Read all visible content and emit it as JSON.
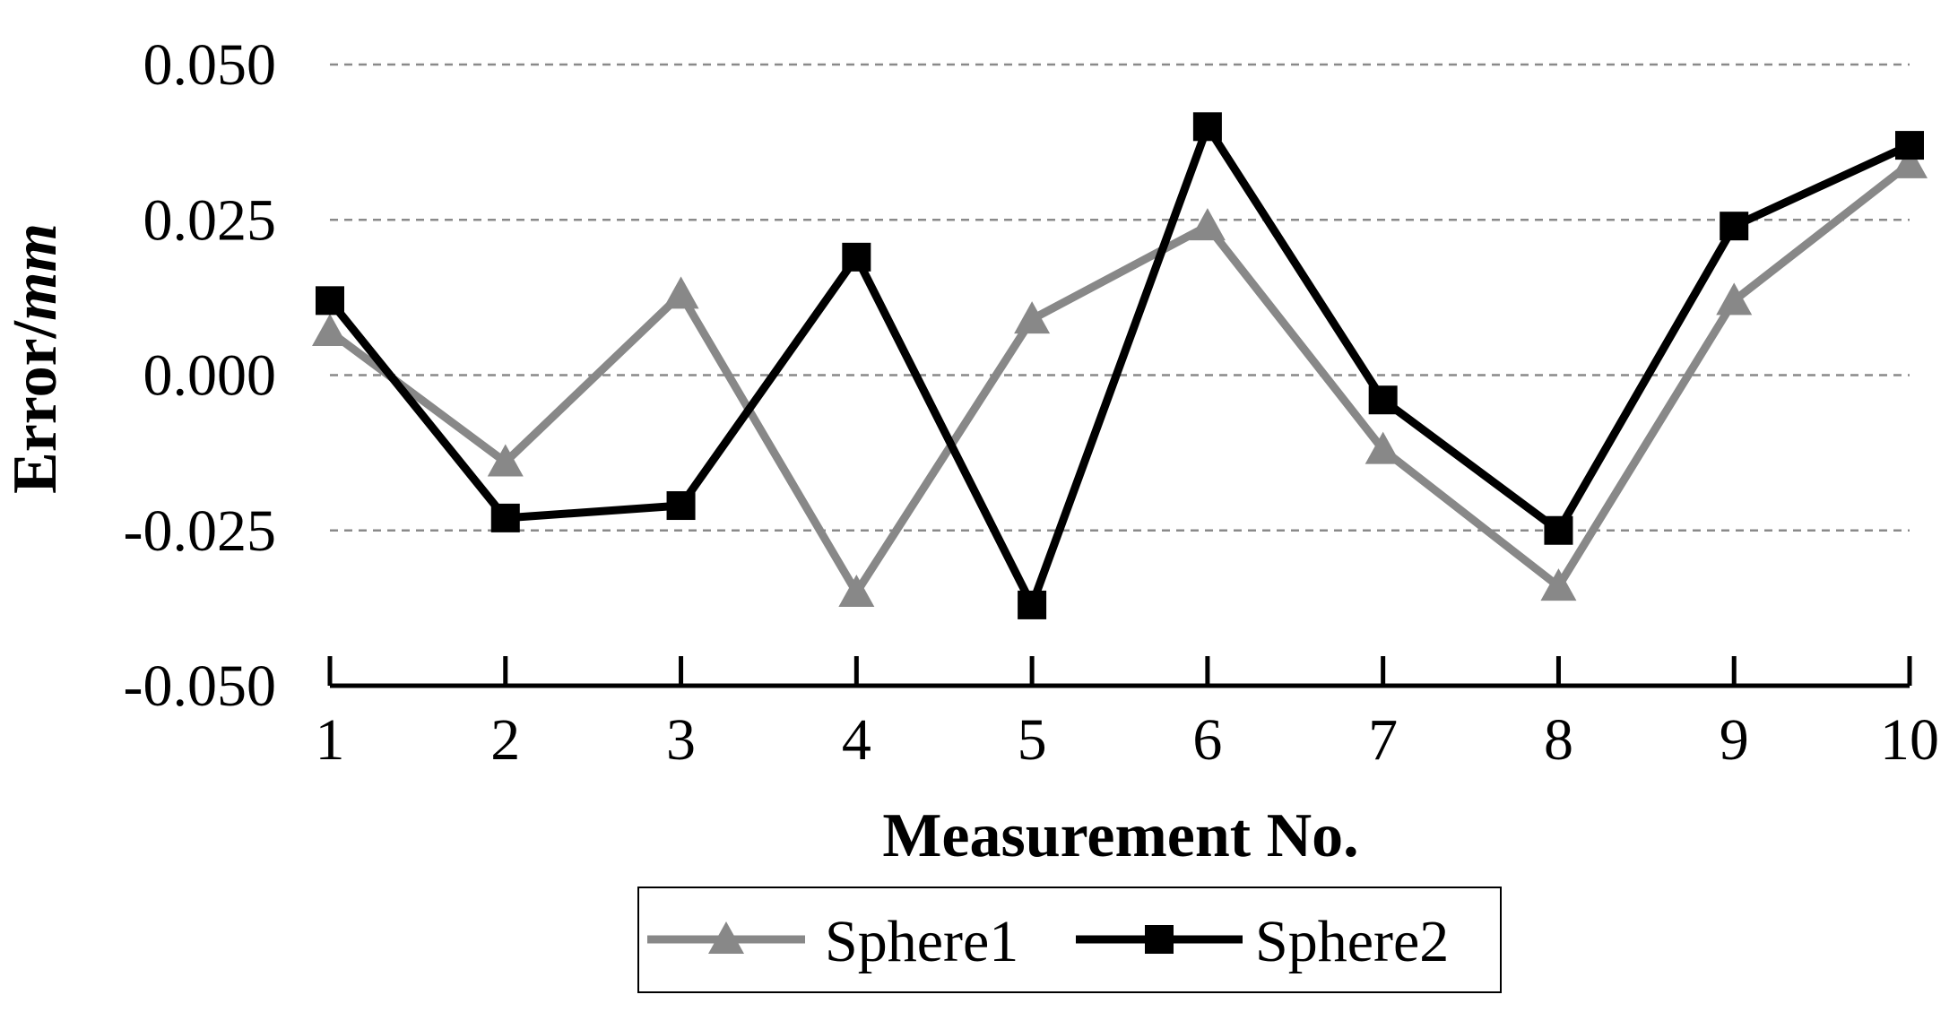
{
  "chart_data": {
    "type": "line",
    "title": "",
    "xlabel": "Measurement No.",
    "ylabel_main": "Error/",
    "ylabel_unit": "mm",
    "x": [
      1,
      2,
      3,
      4,
      5,
      6,
      7,
      8,
      9,
      10
    ],
    "x_tick_labels": [
      "1",
      "2",
      "3",
      "4",
      "5",
      "6",
      "7",
      "8",
      "9",
      "10"
    ],
    "ylim": [
      -0.05,
      0.05
    ],
    "y_ticks": [
      -0.05,
      -0.025,
      0,
      0.025,
      0.05
    ],
    "y_tick_labels": [
      "-0.050",
      "-0.025",
      "0.000",
      "0.025",
      "0.050"
    ],
    "grid": true,
    "legend_position": "bottom",
    "series": [
      {
        "name": "Sphere1",
        "color": "#888888",
        "marker": "triangle",
        "values": [
          0.007,
          -0.014,
          0.013,
          -0.035,
          0.009,
          0.024,
          -0.012,
          -0.034,
          0.012,
          0.034
        ]
      },
      {
        "name": "Sphere2",
        "color": "#000000",
        "marker": "square",
        "values": [
          0.012,
          -0.023,
          -0.021,
          0.019,
          -0.037,
          0.04,
          -0.004,
          -0.025,
          0.024,
          0.037
        ]
      }
    ]
  }
}
